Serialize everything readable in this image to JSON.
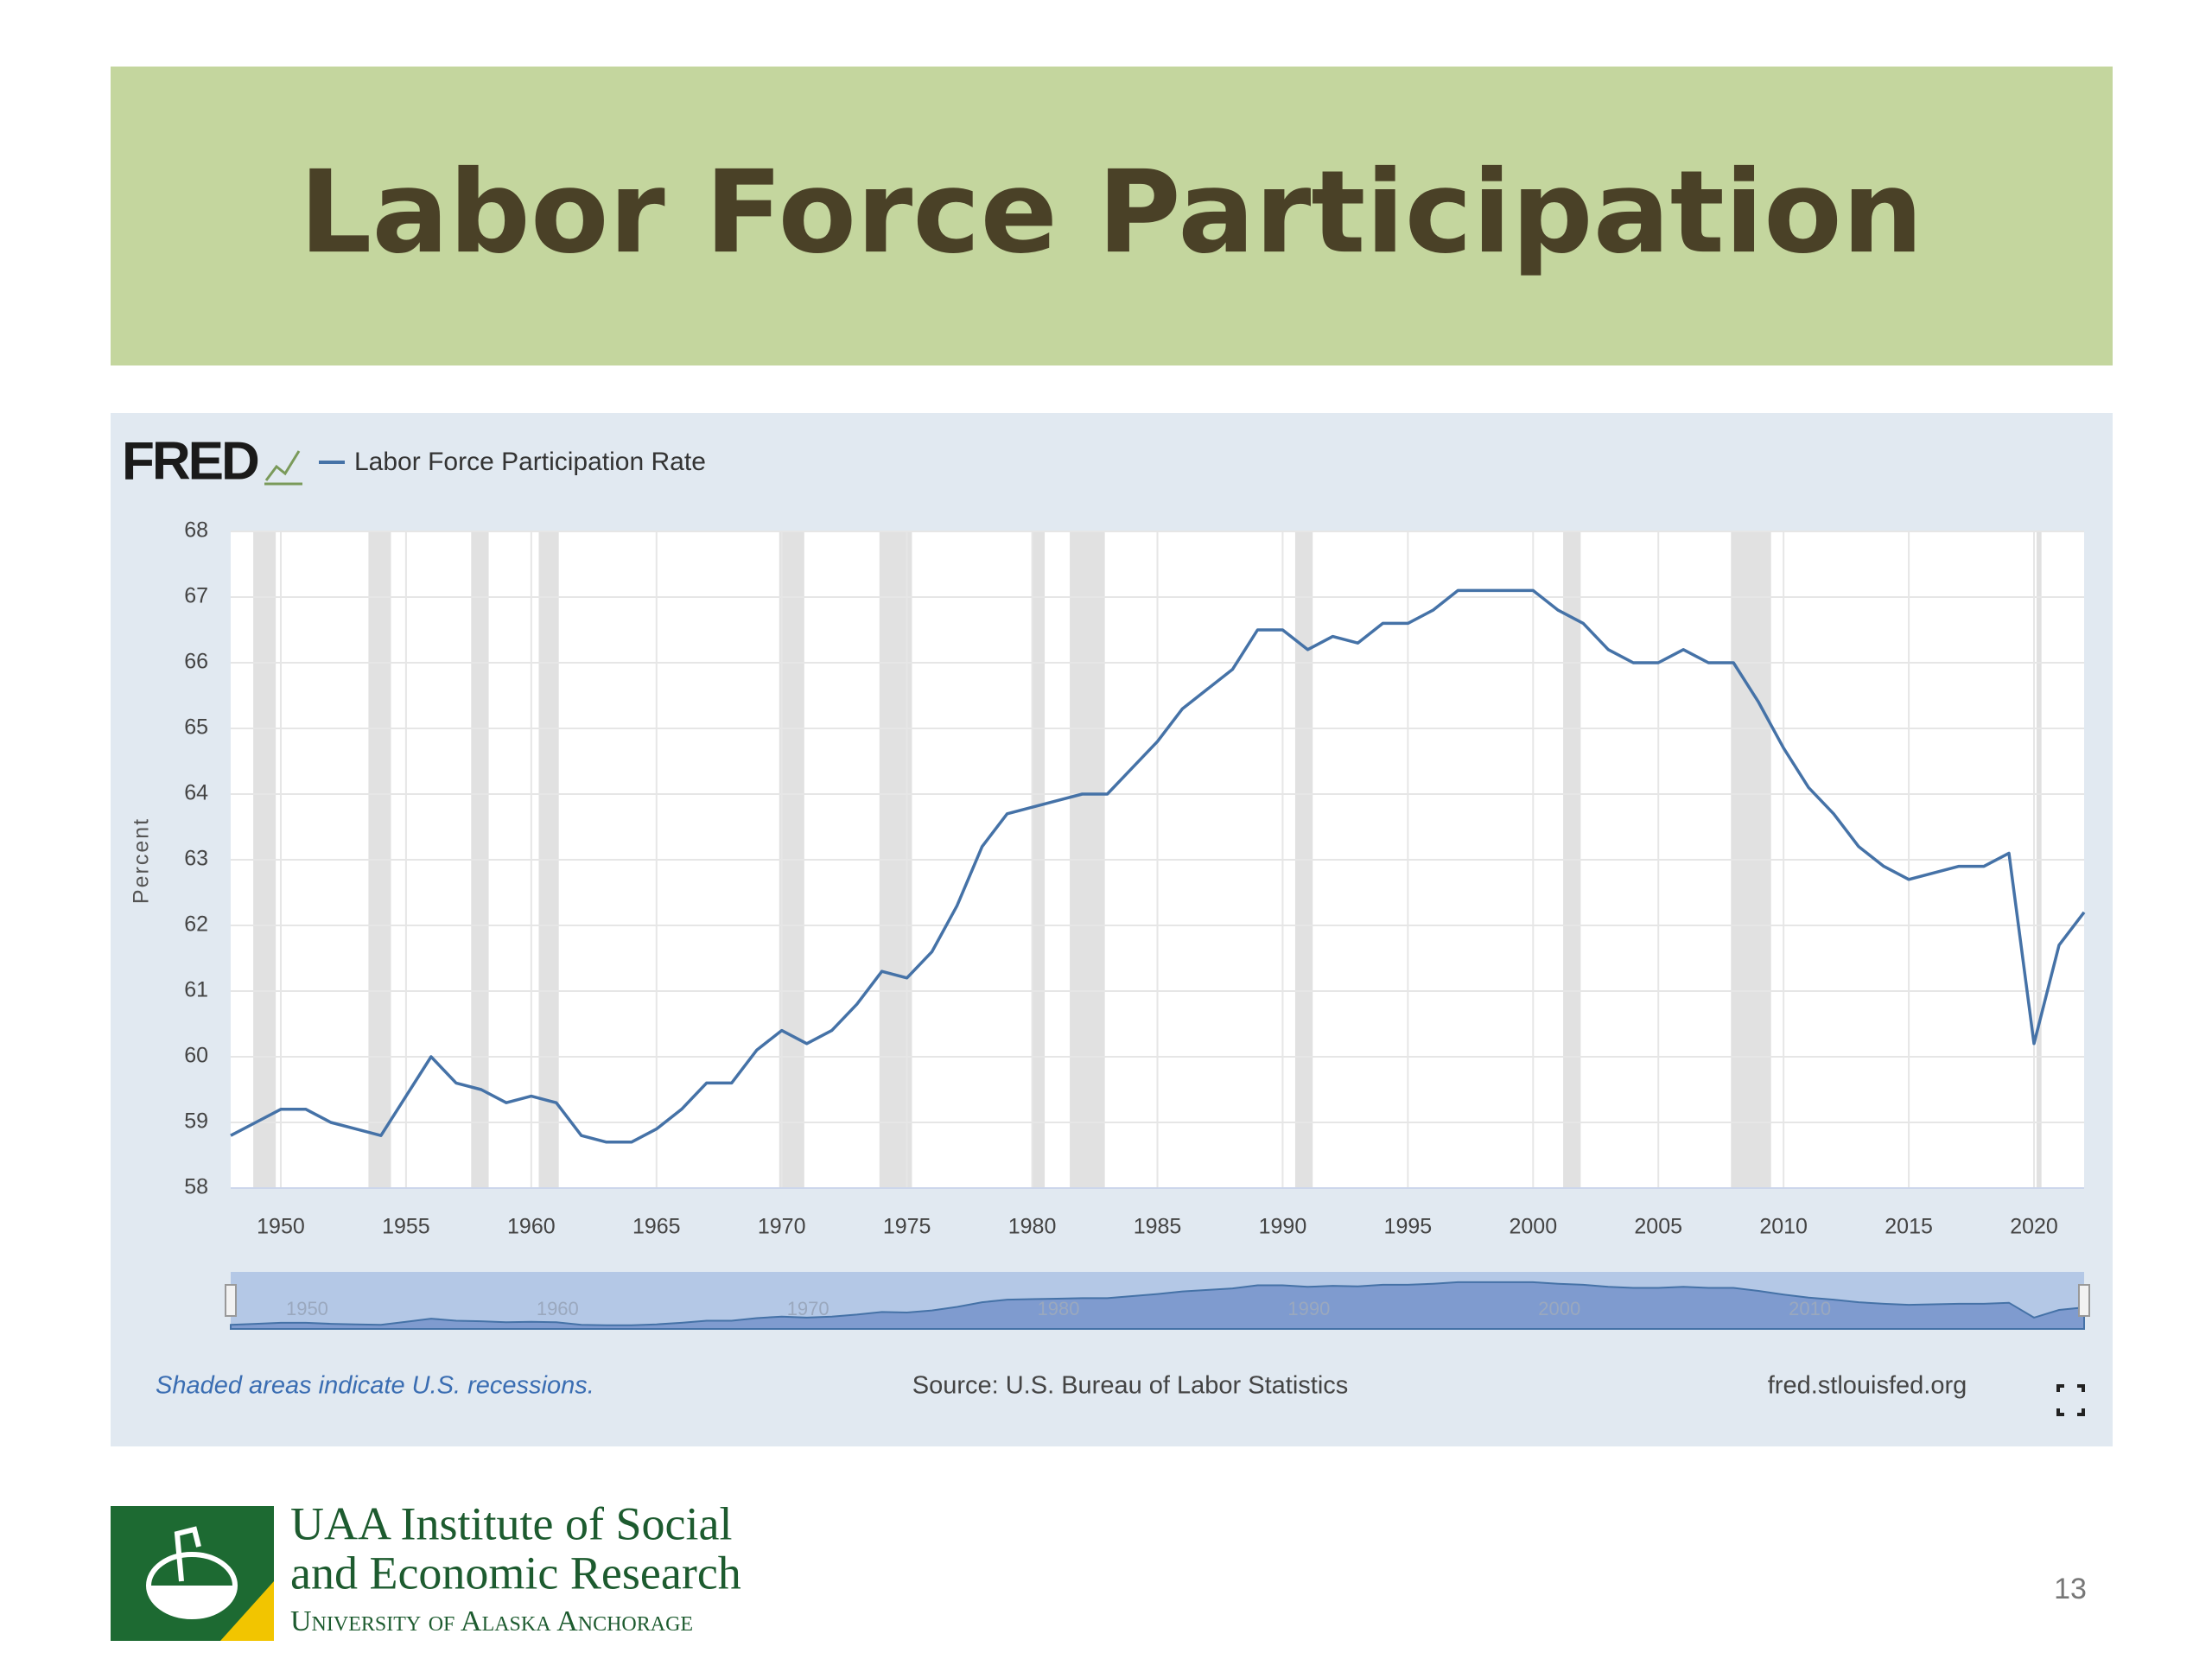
{
  "header": {
    "title": "Labor Force Participation"
  },
  "chart_data": {
    "type": "line",
    "brand": "FRED",
    "ylabel": "Percent",
    "x": [
      1948,
      1949,
      1950,
      1951,
      1952,
      1953,
      1954,
      1955,
      1956,
      1957,
      1958,
      1959,
      1960,
      1961,
      1962,
      1963,
      1964,
      1965,
      1966,
      1967,
      1968,
      1969,
      1970,
      1971,
      1972,
      1973,
      1974,
      1975,
      1976,
      1977,
      1978,
      1979,
      1980,
      1981,
      1982,
      1983,
      1984,
      1985,
      1986,
      1987,
      1988,
      1989,
      1990,
      1991,
      1992,
      1993,
      1994,
      1995,
      1996,
      1997,
      1998,
      1999,
      2000,
      2001,
      2002,
      2003,
      2004,
      2005,
      2006,
      2007,
      2008,
      2009,
      2010,
      2011,
      2012,
      2013,
      2014,
      2015,
      2016,
      2017,
      2018,
      2019,
      2020,
      2021,
      2022
    ],
    "series": [
      {
        "name": "Labor Force Participation Rate",
        "color": "#4572a7",
        "values": [
          58.8,
          59.0,
          59.2,
          59.2,
          59.0,
          58.9,
          58.8,
          59.4,
          60.0,
          59.6,
          59.5,
          59.3,
          59.4,
          59.3,
          58.8,
          58.7,
          58.7,
          58.9,
          59.2,
          59.6,
          59.6,
          60.1,
          60.4,
          60.2,
          60.4,
          60.8,
          61.3,
          61.2,
          61.6,
          62.3,
          63.2,
          63.7,
          63.8,
          63.9,
          64.0,
          64.0,
          64.4,
          64.8,
          65.3,
          65.6,
          65.9,
          66.5,
          66.5,
          66.2,
          66.4,
          66.3,
          66.6,
          66.6,
          66.8,
          67.1,
          67.1,
          67.1,
          67.1,
          66.8,
          66.6,
          66.2,
          66.0,
          66.0,
          66.2,
          66.0,
          66.0,
          65.4,
          64.7,
          64.1,
          63.7,
          63.2,
          62.9,
          62.7,
          62.8,
          62.9,
          62.9,
          63.1,
          60.2,
          61.7,
          62.2
        ]
      }
    ],
    "xlim": [
      1948,
      2022
    ],
    "ylim": [
      58,
      68
    ],
    "xticks": [
      1950,
      1955,
      1960,
      1965,
      1970,
      1975,
      1980,
      1985,
      1990,
      1995,
      2000,
      2005,
      2010,
      2015,
      2020
    ],
    "yticks": [
      58,
      59,
      60,
      61,
      62,
      63,
      64,
      65,
      66,
      67,
      68
    ],
    "navigator_xticks": [
      1950,
      1960,
      1970,
      1980,
      1990,
      2000,
      2010
    ],
    "grid": true,
    "recessions": [
      [
        1948.9,
        1949.8
      ],
      [
        1953.5,
        1954.4
      ],
      [
        1957.6,
        1958.3
      ],
      [
        1960.3,
        1961.1
      ],
      [
        1969.9,
        1970.9
      ],
      [
        1973.9,
        1975.2
      ],
      [
        1980.0,
        1980.5
      ],
      [
        1981.5,
        1982.9
      ],
      [
        1990.5,
        1991.2
      ],
      [
        2001.2,
        2001.9
      ],
      [
        2007.9,
        2009.5
      ],
      [
        2020.1,
        2020.3
      ]
    ],
    "recession_color": "#e1e1e1"
  },
  "footer": {
    "note": "Shaded areas indicate U.S. recessions.",
    "source": "Source: U.S. Bureau of Labor Statistics",
    "site": "fred.stlouisfed.org"
  },
  "logo": {
    "line1": "UAA Institute of Social",
    "line2": "and Economic Research",
    "line3": "University of Alaska Anchorage"
  },
  "page_number": 13
}
